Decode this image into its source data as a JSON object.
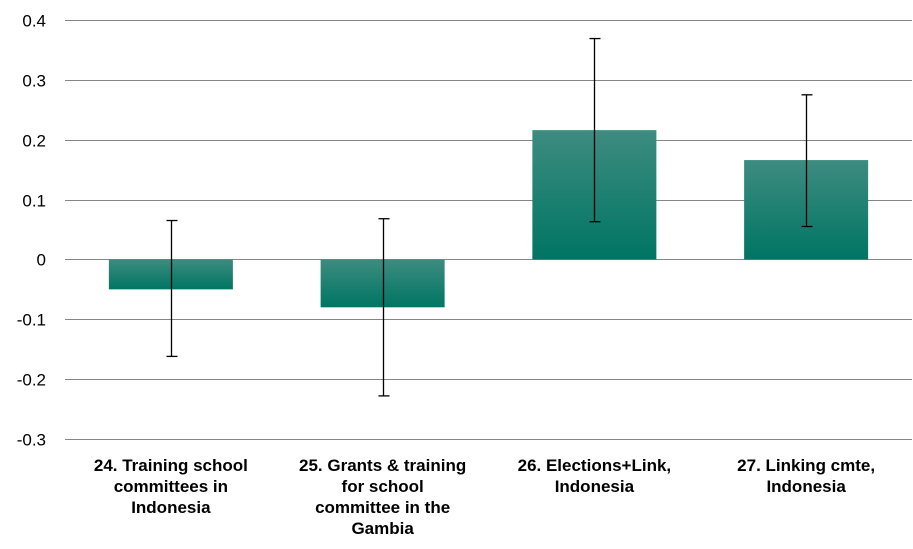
{
  "chart_data": {
    "type": "bar",
    "categories": [
      "24. Training school\ncommittees in\nIndonesia",
      "25. Grants & training\nfor school\ncommittee in the\nGambia",
      "26. Elections+Link,\nIndonesia",
      "27. Linking cmte,\nIndonesia"
    ],
    "values": [
      -0.05,
      -0.08,
      0.216,
      0.166
    ],
    "error_low": [
      -0.162,
      -0.228,
      0.063,
      0.055
    ],
    "error_high": [
      0.065,
      0.068,
      0.369,
      0.275
    ],
    "ylim": [
      -0.3,
      0.4
    ],
    "yticks": [
      "0.4",
      "0.3",
      "0.2",
      "0.1",
      "0",
      "-0.1",
      "-0.2",
      "-0.3"
    ],
    "ytick_values": [
      0.4,
      0.3,
      0.2,
      0.1,
      0,
      -0.1,
      -0.2,
      -0.3
    ],
    "grid": true,
    "colors": {
      "bar_top": "#3d8c80",
      "bar_bottom": "#007563",
      "grid": "#868686",
      "error": "#000000"
    }
  }
}
